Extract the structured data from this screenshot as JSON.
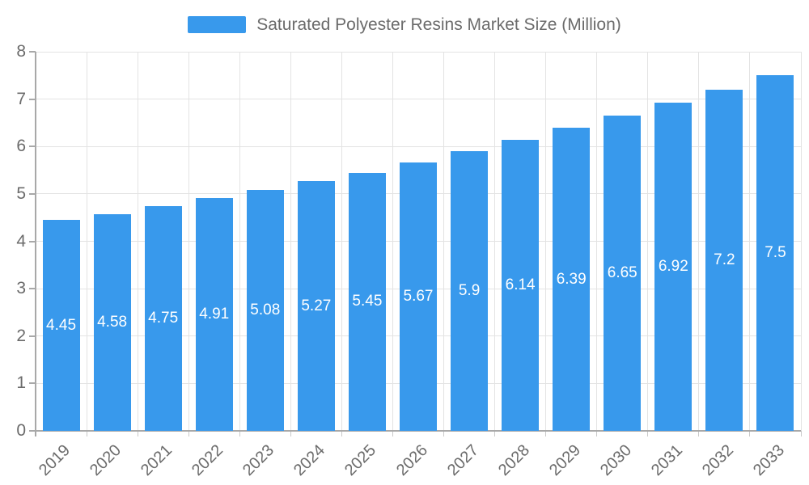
{
  "chart_data": {
    "type": "bar",
    "title": "Saturated Polyester Resins Market Size (Million)",
    "legend": {
      "label": "Saturated Polyester Resins Market Size (Million)",
      "position": "top"
    },
    "categories": [
      "2019",
      "2020",
      "2021",
      "2022",
      "2023",
      "2024",
      "2025",
      "2026",
      "2027",
      "2028",
      "2029",
      "2030",
      "2031",
      "2032",
      "2033"
    ],
    "series": [
      {
        "name": "Saturated Polyester Resins Market Size (Million)",
        "values": [
          4.45,
          4.58,
          4.75,
          4.91,
          5.08,
          5.27,
          5.45,
          5.67,
          5.9,
          6.14,
          6.39,
          6.65,
          6.92,
          7.2,
          7.5
        ],
        "value_labels": [
          "4.45",
          "4.58",
          "4.75",
          "4.91",
          "5.08",
          "5.27",
          "5.45",
          "5.67",
          "5.9",
          "6.14",
          "6.39",
          "6.65",
          "6.92",
          "7.2",
          "7.5"
        ]
      }
    ],
    "xlabel": "",
    "ylabel": "",
    "ylim": [
      0,
      8
    ],
    "y_ticks": [
      0,
      1,
      2,
      3,
      4,
      5,
      6,
      7,
      8
    ],
    "grid": true,
    "value_label_position": "inside-center",
    "x_tick_rotation_deg": -45,
    "colors": {
      "bar": "#3899ec",
      "value_label": "#ffffff",
      "grid_line": "#e3e3e3",
      "axis_line": "#a8a8a8",
      "tick_mark": "#c9c9c9",
      "tick_text": "#6b6b6b",
      "legend_text": "#6b6b6b",
      "background": "#ffffff"
    }
  }
}
